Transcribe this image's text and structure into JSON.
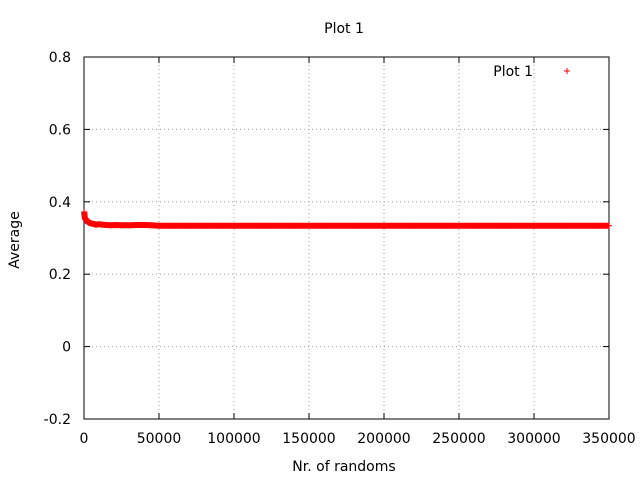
{
  "chart_data": {
    "type": "scatter",
    "title": "Plot 1",
    "xlabel": "Nr. of randoms",
    "ylabel": "Average",
    "xlim": [
      0,
      350000
    ],
    "ylim": [
      -0.2,
      0.8
    ],
    "xticks": [
      0,
      50000,
      100000,
      150000,
      200000,
      250000,
      300000,
      350000
    ],
    "xtick_labels": [
      "0",
      "50000",
      "100000",
      "150000",
      "200000",
      "250000",
      "300000",
      "350000"
    ],
    "yticks": [
      -0.2,
      0,
      0.2,
      0.4,
      0.6,
      0.8
    ],
    "ytick_labels": [
      "-0.2",
      "0",
      "0.2",
      "0.4",
      "0.6",
      "0.8"
    ],
    "grid": true,
    "legend_position": "top-right",
    "marker": "+",
    "series": [
      {
        "name": "Plot 1",
        "color": "#ff0000",
        "x": [
          100,
          300,
          600,
          1000,
          1500,
          2000,
          3000,
          4000,
          5000,
          6000,
          7000,
          8000,
          10000,
          12000,
          15000,
          18000,
          20000,
          25000,
          30000,
          35000,
          40000,
          45000,
          50000,
          60000,
          70000,
          80000,
          90000,
          100000,
          120000,
          140000,
          160000,
          180000,
          200000,
          220000,
          240000,
          260000,
          280000,
          300000,
          320000,
          340000,
          350000
        ],
        "y": [
          0.372,
          0.362,
          0.355,
          0.352,
          0.349,
          0.346,
          0.344,
          0.341,
          0.34,
          0.339,
          0.338,
          0.337,
          0.338,
          0.337,
          0.336,
          0.335,
          0.336,
          0.335,
          0.335,
          0.336,
          0.336,
          0.335,
          0.334,
          0.334,
          0.334,
          0.334,
          0.334,
          0.334,
          0.334,
          0.334,
          0.334,
          0.334,
          0.334,
          0.334,
          0.334,
          0.334,
          0.334,
          0.334,
          0.334,
          0.334,
          0.334
        ]
      }
    ]
  }
}
